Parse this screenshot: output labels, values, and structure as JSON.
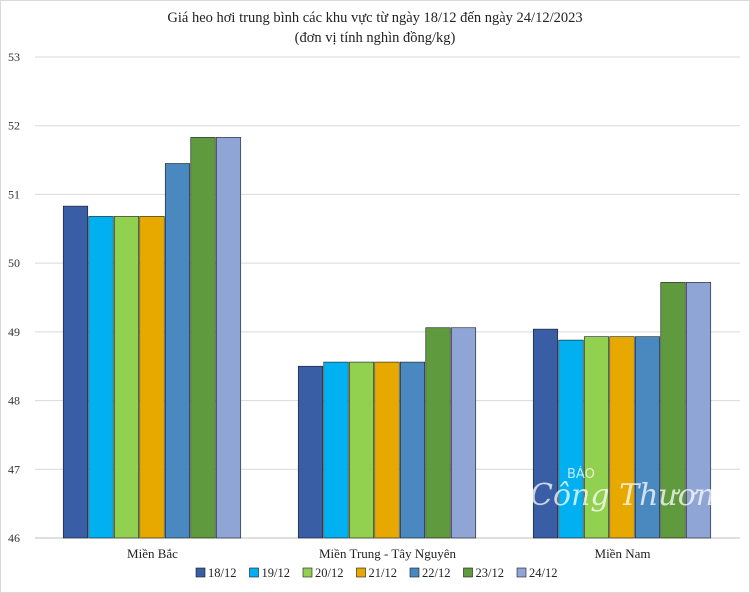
{
  "chart_data": {
    "type": "bar",
    "title": "Giá heo hơi trung bình các khu vực từ ngày 18/12 đến ngày 24/12/2023",
    "subtitle": "(đơn vị tính nghìn đồng/kg)",
    "xlabel": "",
    "ylabel": "",
    "ylim": [
      46,
      53
    ],
    "yticks": [
      "46",
      "47",
      "48",
      "49",
      "50",
      "51",
      "52",
      "53"
    ],
    "grid": true,
    "legend_position": "bottom",
    "categories": [
      "Miền Bắc",
      "Miền Trung - Tây Nguyên",
      "Miền Nam"
    ],
    "series": [
      {
        "name": "18/12",
        "color": "#3a5ea6",
        "values": [
          50.83,
          48.5,
          49.04
        ]
      },
      {
        "name": "19/12",
        "color": "#00b0f0",
        "values": [
          50.68,
          48.56,
          48.88
        ]
      },
      {
        "name": "20/12",
        "color": "#92d050",
        "values": [
          50.68,
          48.56,
          48.93
        ]
      },
      {
        "name": "21/12",
        "color": "#e7a900",
        "values": [
          50.68,
          48.56,
          48.93
        ]
      },
      {
        "name": "22/12",
        "color": "#4a89c0",
        "values": [
          51.45,
          48.56,
          48.93
        ]
      },
      {
        "name": "23/12",
        "color": "#5f9a3e",
        "values": [
          51.83,
          49.06,
          49.72
        ]
      },
      {
        "name": "24/12",
        "color": "#8fa5d6",
        "values": [
          51.83,
          49.06,
          49.72
        ]
      }
    ]
  },
  "watermark": {
    "small": "BÁO",
    "big": "Công Thương"
  }
}
